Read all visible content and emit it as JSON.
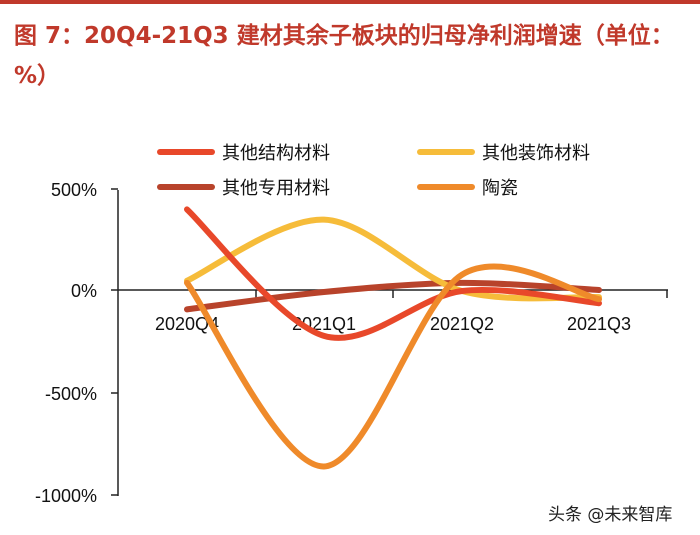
{
  "title": "图 7：20Q4-21Q3 建材其余子板块的归母净利润增速（单位：%）",
  "watermark": "头条 @未来智库",
  "chart_data": {
    "type": "line",
    "title": "图 7：20Q4-21Q3 建材其余子板块的归母净利润增速（单位：%）",
    "categories": [
      "2020Q4",
      "2021Q1",
      "2021Q2",
      "2021Q3"
    ],
    "ylim": [
      -1000,
      500
    ],
    "yticks": [
      500,
      0,
      -500,
      -1000
    ],
    "ytick_labels": [
      "500%",
      "0%",
      "-500%",
      "-1000%"
    ],
    "xlabel": "",
    "ylabel": "",
    "legend_position": "top",
    "series": [
      {
        "name": "其他结构材料",
        "values": [
          400,
          -220,
          0,
          -60
        ],
        "color": "#e8482a"
      },
      {
        "name": "其他装饰材料",
        "values": [
          50,
          350,
          0,
          -30
        ],
        "color": "#f6bc3a"
      },
      {
        "name": "其他专用材料",
        "values": [
          -90,
          -5,
          40,
          5
        ],
        "color": "#b8432b"
      },
      {
        "name": "陶瓷",
        "values": [
          40,
          -860,
          80,
          -40
        ],
        "color": "#ef8a2a"
      }
    ]
  }
}
